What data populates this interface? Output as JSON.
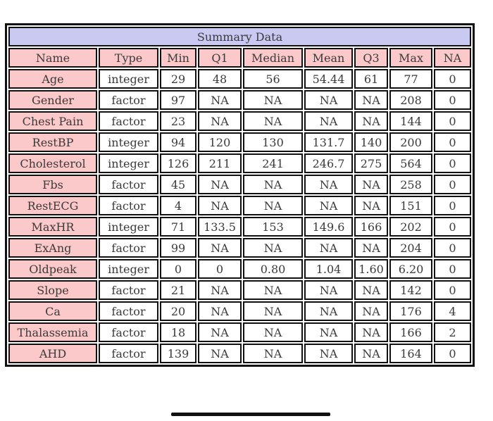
{
  "title": "Summary Data",
  "colors": {
    "title_background": "#c9c9f2",
    "header_background": "#fbc9c9",
    "name_column_background": "#fbc9c9",
    "cell_background": "#ffffff",
    "border": "#111111",
    "text": "#3a3a3a"
  },
  "chart_data": {
    "type": "table",
    "title": "Summary Data",
    "columns": [
      "Name",
      "Type",
      "Min",
      "Q1",
      "Median",
      "Mean",
      "Q3",
      "Max",
      "NA"
    ],
    "rows": [
      [
        "Age",
        "integer",
        "29",
        "48",
        "56",
        "54.44",
        "61",
        "77",
        "0"
      ],
      [
        "Gender",
        "factor",
        "97",
        "NA",
        "NA",
        "NA",
        "NA",
        "208",
        "0"
      ],
      [
        "Chest Pain",
        "factor",
        "23",
        "NA",
        "NA",
        "NA",
        "NA",
        "144",
        "0"
      ],
      [
        "RestBP",
        "integer",
        "94",
        "120",
        "130",
        "131.7",
        "140",
        "200",
        "0"
      ],
      [
        "Cholesterol",
        "integer",
        "126",
        "211",
        "241",
        "246.7",
        "275",
        "564",
        "0"
      ],
      [
        "Fbs",
        "factor",
        "45",
        "NA",
        "NA",
        "NA",
        "NA",
        "258",
        "0"
      ],
      [
        "RestECG",
        "factor",
        "4",
        "NA",
        "NA",
        "NA",
        "NA",
        "151",
        "0"
      ],
      [
        "MaxHR",
        "integer",
        "71",
        "133.5",
        "153",
        "149.6",
        "166",
        "202",
        "0"
      ],
      [
        "ExAng",
        "factor",
        "99",
        "NA",
        "NA",
        "NA",
        "NA",
        "204",
        "0"
      ],
      [
        "Oldpeak",
        "integer",
        "0",
        "0",
        "0.80",
        "1.04",
        "1.60",
        "6.20",
        "0"
      ],
      [
        "Slope",
        "factor",
        "21",
        "NA",
        "NA",
        "NA",
        "NA",
        "142",
        "0"
      ],
      [
        "Ca",
        "factor",
        "20",
        "NA",
        "NA",
        "NA",
        "NA",
        "176",
        "4"
      ],
      [
        "Thalassemia",
        "factor",
        "18",
        "NA",
        "NA",
        "NA",
        "NA",
        "166",
        "2"
      ],
      [
        "AHD",
        "factor",
        "139",
        "NA",
        "NA",
        "NA",
        "NA",
        "164",
        "0"
      ]
    ]
  }
}
